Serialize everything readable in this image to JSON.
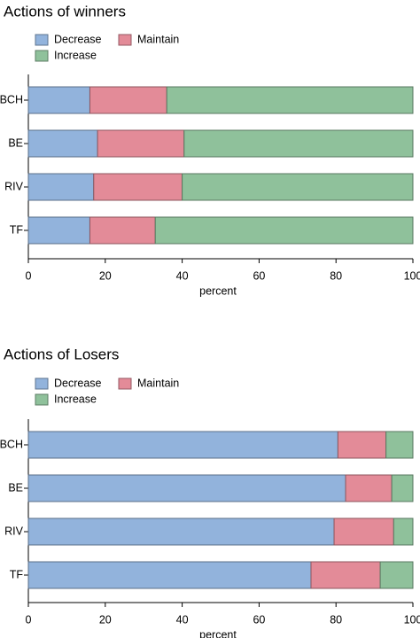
{
  "chart_data": [
    {
      "type": "bar",
      "orientation": "horizontal",
      "stacked": true,
      "title": "Actions of winners",
      "xlabel": "percent",
      "ylabel": "",
      "xlim": [
        0,
        100
      ],
      "xticks": [
        "0",
        "20",
        "40",
        "60",
        "80",
        "100"
      ],
      "categories": [
        "BCH",
        "BE",
        "RIV",
        "TF"
      ],
      "legend_placement": "top-left",
      "grid": false,
      "series": [
        {
          "name": "Decrease",
          "color": "#92b3dc",
          "values": [
            16,
            18,
            17,
            16
          ]
        },
        {
          "name": "Maintain",
          "color": "#e38b98",
          "values": [
            20,
            22.5,
            23,
            17
          ]
        },
        {
          "name": "Increase",
          "color": "#8fc19b",
          "values": [
            64,
            59.5,
            60,
            67
          ]
        }
      ]
    },
    {
      "type": "bar",
      "orientation": "horizontal",
      "stacked": true,
      "title": "Actions of Losers",
      "xlabel": "percent",
      "ylabel": "",
      "xlim": [
        0,
        100
      ],
      "xticks": [
        "0",
        "20",
        "40",
        "60",
        "80",
        "100"
      ],
      "categories": [
        "BCH",
        "BE",
        "RIV",
        "TF"
      ],
      "legend_placement": "top-left",
      "grid": false,
      "series": [
        {
          "name": "Decrease",
          "color": "#92b3dc",
          "values": [
            80.5,
            82.5,
            79.5,
            73.5
          ]
        },
        {
          "name": "Maintain",
          "color": "#e38b98",
          "values": [
            12.5,
            12,
            15.5,
            18
          ]
        },
        {
          "name": "Increase",
          "color": "#8fc19b",
          "values": [
            7,
            5.5,
            5,
            8.5
          ]
        }
      ]
    }
  ]
}
